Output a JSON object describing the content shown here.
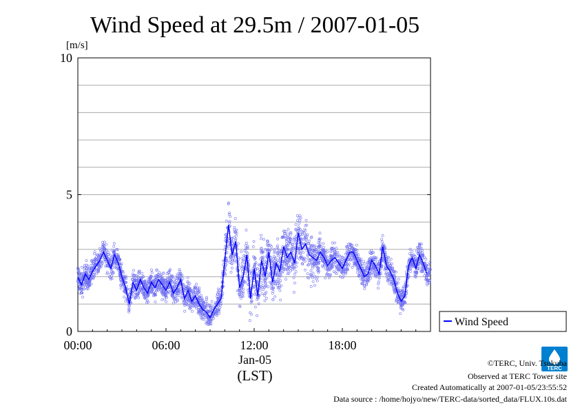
{
  "chart_data": {
    "type": "scatter",
    "title": "Wind Speed at 29.5m / 2007-01-05",
    "ylabel": "[m/s]",
    "xlabel_date": "Jan-05",
    "xlabel_unit": "(LST)",
    "x_ticks": [
      "00:00",
      "06:00",
      "12:00",
      "18:00"
    ],
    "y_ticks": [
      "0",
      "5",
      "10"
    ],
    "xlim": [
      0,
      24
    ],
    "ylim": [
      0,
      10
    ],
    "grid": true,
    "legend_position": "right",
    "series": [
      {
        "name": "Wind Speed",
        "color": "#0000ff",
        "scatter_color": "#6e6ef0",
        "x": [
          0.0,
          0.25,
          0.5,
          0.75,
          1.0,
          1.25,
          1.5,
          1.75,
          2.0,
          2.25,
          2.5,
          2.75,
          3.0,
          3.25,
          3.5,
          3.75,
          4.0,
          4.25,
          4.5,
          4.75,
          5.0,
          5.25,
          5.5,
          5.75,
          6.0,
          6.25,
          6.5,
          6.75,
          7.0,
          7.25,
          7.5,
          7.75,
          8.0,
          8.25,
          8.5,
          8.75,
          9.0,
          9.25,
          9.5,
          9.75,
          10.0,
          10.25,
          10.5,
          10.75,
          11.0,
          11.25,
          11.5,
          11.75,
          12.0,
          12.25,
          12.5,
          12.75,
          13.0,
          13.25,
          13.5,
          13.75,
          14.0,
          14.25,
          14.5,
          14.75,
          15.0,
          15.25,
          15.5,
          15.75,
          16.0,
          16.25,
          16.5,
          16.75,
          17.0,
          17.25,
          17.5,
          17.75,
          18.0,
          18.25,
          18.5,
          18.75,
          19.0,
          19.25,
          19.5,
          19.75,
          20.0,
          20.25,
          20.5,
          20.75,
          21.0,
          21.25,
          21.5,
          21.75,
          22.0,
          22.25,
          22.5,
          22.75,
          23.0,
          23.25,
          23.5,
          23.75
        ],
        "values": [
          2.0,
          1.7,
          2.1,
          1.9,
          2.2,
          2.4,
          2.6,
          2.9,
          2.6,
          2.3,
          2.8,
          2.5,
          2.0,
          1.6,
          1.0,
          1.8,
          1.5,
          1.9,
          1.6,
          1.4,
          1.8,
          1.6,
          1.9,
          1.7,
          1.5,
          1.8,
          1.4,
          1.6,
          1.9,
          1.2,
          1.5,
          1.1,
          1.3,
          1.0,
          0.8,
          0.7,
          0.5,
          0.8,
          1.0,
          1.2,
          2.6,
          3.9,
          2.8,
          3.3,
          1.6,
          2.0,
          2.8,
          1.2,
          2.3,
          1.3,
          2.6,
          2.0,
          2.9,
          1.8,
          2.5,
          2.2,
          3.1,
          2.7,
          2.9,
          2.5,
          3.6,
          3.0,
          3.2,
          2.8,
          2.7,
          2.6,
          2.9,
          2.7,
          2.4,
          2.6,
          2.7,
          2.5,
          2.3,
          2.6,
          2.9,
          2.9,
          2.6,
          2.3,
          2.0,
          2.1,
          2.6,
          2.4,
          2.1,
          3.1,
          2.4,
          2.2,
          1.9,
          1.4,
          1.1,
          1.3,
          2.4,
          2.7,
          2.3,
          2.8,
          2.5,
          2.1
        ]
      }
    ]
  },
  "credits": {
    "copyright": "©TERC, Univ. Tsukuba",
    "observed": "Observed at TERC Tower site",
    "created": "Created Automatically at 2007-01-05/23:55:52",
    "source": "Data source : /home/hojyo/new/TERC-data/sorted_data/FLUX.10s.dat",
    "logo_text": "TERC"
  }
}
